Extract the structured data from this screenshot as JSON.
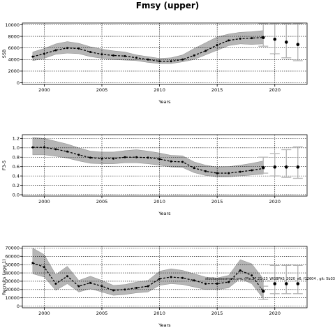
{
  "figure": {
    "title": "Fmsy (upper)"
  },
  "chart_data": [
    {
      "type": "line",
      "title": "",
      "xlabel": "Years",
      "ylabel": "SSB",
      "xlim": [
        1998.1,
        2022.8
      ],
      "ylim": [
        -300,
        10300
      ],
      "xticks": [
        2000,
        2005,
        2010,
        2015,
        2020
      ],
      "yticks": [
        0,
        2000,
        4000,
        6000,
        8000,
        10000
      ],
      "grid": true,
      "x": [
        1999,
        2000,
        2001,
        2002,
        2003,
        2004,
        2005,
        2006,
        2007,
        2008,
        2009,
        2010,
        2011,
        2012,
        2013,
        2014,
        2015,
        2016,
        2017,
        2018,
        2019
      ],
      "series": [
        {
          "values": [
            4500,
            5000,
            5600,
            6000,
            5900,
            5300,
            4900,
            4700,
            4600,
            4300,
            4000,
            3700,
            3700,
            4000,
            4700,
            5500,
            6500,
            7300,
            7600,
            7700,
            7800
          ]
        }
      ],
      "band_upper": [
        5300,
        5900,
        6700,
        7100,
        6800,
        6200,
        5800,
        5500,
        5300,
        4800,
        4500,
        4200,
        4300,
        4800,
        5900,
        6900,
        7900,
        8400,
        8700,
        8800,
        9000
      ],
      "band_lower": [
        3800,
        4200,
        4900,
        5100,
        5000,
        4500,
        4200,
        4000,
        3900,
        3800,
        3500,
        3300,
        3300,
        3600,
        4000,
        4800,
        5600,
        6400,
        6700,
        6600,
        6700
      ],
      "projection": {
        "x": [
          2019,
          2020,
          2021,
          2022
        ],
        "values": [
          7800,
          7500,
          7000,
          6600
        ],
        "upper": [
          10200,
          10200,
          10200,
          10200
        ],
        "lower": [
          6300,
          5000,
          4300,
          3800
        ]
      }
    },
    {
      "type": "line",
      "title": "",
      "xlabel": "Years",
      "ylabel": "F3-5",
      "xlim": [
        1998.1,
        2022.8
      ],
      "ylim": [
        -0.03,
        1.28
      ],
      "xticks": [
        2000,
        2005,
        2010,
        2015,
        2020
      ],
      "yticks": [
        0.0,
        0.2,
        0.4,
        0.6,
        0.8,
        1.0,
        1.2
      ],
      "ytick_labels": [
        "0.0",
        "0.2",
        "0.4",
        "0.6",
        "0.8",
        "1.0",
        "1.2"
      ],
      "grid": true,
      "x": [
        1999,
        2000,
        2001,
        2002,
        2003,
        2004,
        2005,
        2006,
        2007,
        2008,
        2009,
        2010,
        2011,
        2012,
        2013,
        2014,
        2015,
        2016,
        2017,
        2018,
        2019
      ],
      "series": [
        {
          "values": [
            1.01,
            1.01,
            0.97,
            0.92,
            0.85,
            0.79,
            0.77,
            0.77,
            0.8,
            0.8,
            0.79,
            0.76,
            0.71,
            0.7,
            0.57,
            0.5,
            0.46,
            0.46,
            0.49,
            0.52,
            0.56
          ]
        }
      ],
      "band_upper": [
        1.22,
        1.2,
        1.14,
        1.08,
        1.0,
        0.93,
        0.91,
        0.91,
        0.94,
        0.96,
        0.93,
        0.89,
        0.84,
        0.83,
        0.7,
        0.63,
        0.59,
        0.6,
        0.63,
        0.67,
        0.72
      ],
      "band_lower": [
        0.85,
        0.85,
        0.82,
        0.78,
        0.72,
        0.67,
        0.66,
        0.66,
        0.68,
        0.68,
        0.66,
        0.63,
        0.59,
        0.58,
        0.47,
        0.41,
        0.38,
        0.38,
        0.4,
        0.42,
        0.44
      ],
      "projection": {
        "x": [
          2019,
          2020,
          2021,
          2022
        ],
        "values": [
          0.58,
          0.59,
          0.59,
          0.59
        ],
        "upper": [
          0.8,
          0.88,
          0.96,
          1.02
        ],
        "lower": [
          0.46,
          0.4,
          0.37,
          0.35
        ]
      }
    },
    {
      "type": "line",
      "title": "",
      "xlabel": "Years",
      "ylabel": "Recruits (age 1)",
      "xlim": [
        1998.1,
        2022.8
      ],
      "ylim": [
        -2000,
        72000
      ],
      "xticks": [
        2000,
        2005,
        2010,
        2015,
        2020
      ],
      "yticks": [
        0,
        10000,
        20000,
        30000,
        40000,
        50000,
        60000,
        70000
      ],
      "grid": true,
      "annotation": "stockassessment.org, (Ple.27.21-23_WGBFAS_2020_v6, f12604 , git: 5b33",
      "x": [
        1999,
        2000,
        2001,
        2002,
        2003,
        2004,
        2005,
        2006,
        2007,
        2008,
        2009,
        2010,
        2011,
        2012,
        2013,
        2014,
        2015,
        2016,
        2017,
        2018,
        2019
      ],
      "series": [
        {
          "values": [
            52000,
            47000,
            27000,
            36000,
            24000,
            28000,
            24000,
            19000,
            20000,
            22000,
            24000,
            33000,
            35000,
            34000,
            31000,
            27000,
            27000,
            29000,
            43000,
            37000,
            18000
          ]
        }
      ],
      "band_upper": [
        70000,
        62000,
        38000,
        48000,
        31000,
        36000,
        31000,
        25000,
        26000,
        29000,
        31000,
        42000,
        45000,
        43000,
        39000,
        35000,
        34000,
        37000,
        56000,
        51000,
        33000
      ],
      "band_lower": [
        39000,
        35000,
        19000,
        27000,
        17000,
        21000,
        17000,
        13000,
        14000,
        16000,
        17000,
        25000,
        27000,
        26000,
        23000,
        20000,
        20000,
        22000,
        33000,
        27000,
        9000
      ],
      "projection": {
        "x": [
          2019,
          2020,
          2021,
          2022
        ],
        "values": [
          18000,
          27000,
          27000,
          27000
        ],
        "upper": [
          24000,
          49000,
          49000,
          49000
        ],
        "lower": [
          8000,
          15000,
          15000,
          15000
        ]
      }
    }
  ]
}
